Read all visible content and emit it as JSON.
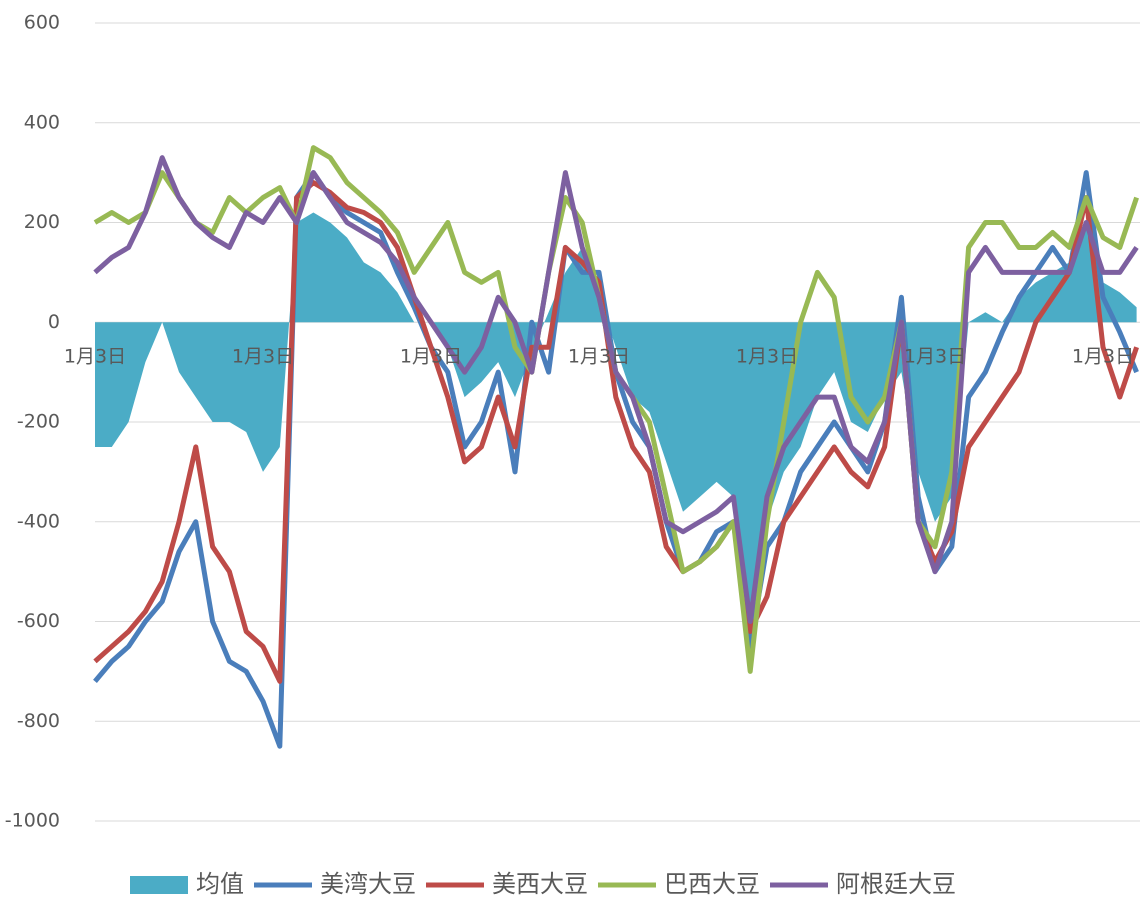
{
  "chart_data": {
    "type": "line",
    "categories": [
      "1月3日",
      null,
      null,
      null,
      null,
      null,
      null,
      null,
      null,
      null,
      "1月3日",
      null,
      null,
      null,
      null,
      null,
      null,
      null,
      null,
      null,
      "1月3日",
      null,
      null,
      null,
      null,
      null,
      null,
      null,
      null,
      null,
      "1月3日",
      null,
      null,
      null,
      null,
      null,
      null,
      null,
      null,
      null,
      "1月3日",
      null,
      null,
      null,
      null,
      null,
      null,
      null,
      null,
      null,
      "1月3日",
      null,
      null,
      null,
      null,
      null,
      null,
      null,
      null,
      null,
      "1月3日",
      null,
      null
    ],
    "ylim": [
      -1000,
      600
    ],
    "yticks": [
      600,
      400,
      200,
      0,
      -200,
      -400,
      -600,
      -800,
      -1000
    ],
    "grid": true,
    "series": [
      {
        "name": "均值",
        "type": "area",
        "color": "#4bacc6",
        "values": [
          -250,
          -250,
          -200,
          -80,
          0,
          -100,
          -150,
          -200,
          -200,
          -220,
          -300,
          -250,
          200,
          220,
          200,
          170,
          120,
          100,
          60,
          0,
          0,
          -50,
          -150,
          -120,
          -80,
          -150,
          -60,
          20,
          100,
          150,
          50,
          -50,
          -150,
          -180,
          -280,
          -380,
          -350,
          -320,
          -350,
          -650,
          -400,
          -300,
          -250,
          -150,
          -100,
          -200,
          -220,
          -150,
          -100,
          -300,
          -400,
          -350,
          0,
          20,
          0,
          50,
          80,
          100,
          120,
          200,
          80,
          60,
          30
        ]
      },
      {
        "name": "美湾大豆",
        "color": "#4a7ebb",
        "values": [
          -720,
          -680,
          -650,
          -600,
          -560,
          -460,
          -400,
          -600,
          -680,
          -700,
          -760,
          -850,
          250,
          300,
          250,
          220,
          200,
          180,
          100,
          30,
          -50,
          -100,
          -250,
          -200,
          -100,
          -300,
          0,
          -100,
          150,
          100,
          100,
          -100,
          -200,
          -250,
          -400,
          -500,
          -480,
          -420,
          -400,
          -650,
          -450,
          -400,
          -300,
          -250,
          -200,
          -250,
          -300,
          -200,
          50,
          -350,
          -500,
          -450,
          -150,
          -100,
          -20,
          50,
          100,
          150,
          100,
          300,
          50,
          -20,
          -100
        ]
      },
      {
        "name": "美西大豆",
        "color": "#be4b48",
        "values": [
          -680,
          -650,
          -620,
          -580,
          -520,
          -400,
          -250,
          -450,
          -500,
          -620,
          -650,
          -720,
          250,
          280,
          260,
          230,
          220,
          200,
          150,
          50,
          -50,
          -150,
          -280,
          -250,
          -150,
          -250,
          -50,
          -50,
          150,
          120,
          80,
          -150,
          -250,
          -300,
          -450,
          -500,
          -480,
          -450,
          -400,
          -620,
          -550,
          -400,
          -350,
          -300,
          -250,
          -300,
          -330,
          -250,
          0,
          -400,
          -480,
          -420,
          -250,
          -200,
          -150,
          -100,
          0,
          50,
          100,
          250,
          -50,
          -150,
          -50
        ]
      },
      {
        "name": "巴西大豆",
        "color": "#98b954",
        "values": [
          200,
          220,
          200,
          220,
          300,
          250,
          200,
          180,
          250,
          220,
          250,
          270,
          200,
          350,
          330,
          280,
          250,
          220,
          180,
          100,
          150,
          200,
          100,
          80,
          100,
          -50,
          -100,
          100,
          250,
          200,
          50,
          -100,
          -150,
          -200,
          -350,
          -500,
          -480,
          -450,
          -400,
          -700,
          -400,
          -200,
          0,
          100,
          50,
          -150,
          -200,
          -150,
          0,
          -400,
          -450,
          -300,
          150,
          200,
          200,
          150,
          150,
          180,
          150,
          250,
          170,
          150,
          250
        ]
      },
      {
        "name": "阿根廷大豆",
        "color": "#7d60a0",
        "values": [
          100,
          130,
          150,
          220,
          330,
          250,
          200,
          170,
          150,
          220,
          200,
          250,
          200,
          300,
          250,
          200,
          180,
          160,
          120,
          50,
          0,
          -50,
          -100,
          -50,
          50,
          0,
          -100,
          100,
          300,
          150,
          50,
          -100,
          -150,
          -250,
          -400,
          -420,
          -400,
          -380,
          -350,
          -600,
          -350,
          -250,
          -200,
          -150,
          -150,
          -250,
          -280,
          -200,
          0,
          -400,
          -500,
          -400,
          100,
          150,
          100,
          100,
          100,
          100,
          100,
          200,
          100,
          100,
          150
        ]
      }
    ]
  }
}
